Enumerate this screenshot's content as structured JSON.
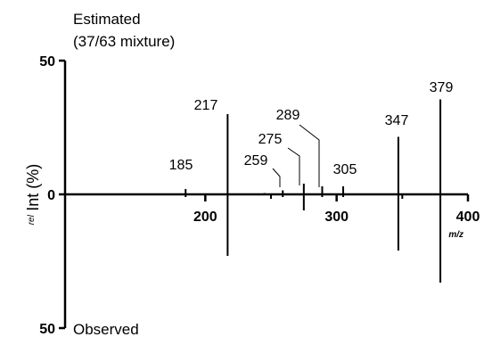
{
  "chart_data": {
    "type": "bar",
    "subtype": "mirror-mass-spectrum",
    "top_label_line1": "Estimated",
    "top_label_line2": "(37/63 mixture)",
    "bottom_label": "Observed",
    "ylabel_sup": "rel",
    "ylabel_main": "Int (%)",
    "xlabel": "m/z",
    "xlim": [
      100,
      400
    ],
    "ylim": [
      -50,
      50
    ],
    "x_ticks_major": [
      200,
      300,
      400
    ],
    "x_ticks_minor": [
      250,
      350
    ],
    "y_tick_labels": [
      "50",
      "0",
      "50"
    ],
    "estimated": [
      {
        "mz": 185,
        "value": 2,
        "label": "185"
      },
      {
        "mz": 217,
        "value": 30,
        "label": "217"
      },
      {
        "mz": 245,
        "value": 0.5,
        "label": ""
      },
      {
        "mz": 259,
        "value": 1.5,
        "label": "259"
      },
      {
        "mz": 275,
        "value": 4,
        "label": "275"
      },
      {
        "mz": 289,
        "value": 3,
        "label": "289"
      },
      {
        "mz": 305,
        "value": 3,
        "label": "305"
      },
      {
        "mz": 347,
        "value": 21.5,
        "label": "347"
      },
      {
        "mz": 379,
        "value": 35.5,
        "label": "379"
      }
    ],
    "observed": [
      {
        "mz": 185,
        "value": 1
      },
      {
        "mz": 217,
        "value": 23
      },
      {
        "mz": 259,
        "value": 1
      },
      {
        "mz": 275,
        "value": 6
      },
      {
        "mz": 289,
        "value": 1
      },
      {
        "mz": 305,
        "value": 1
      },
      {
        "mz": 347,
        "value": 21
      },
      {
        "mz": 379,
        "value": 33
      }
    ]
  }
}
